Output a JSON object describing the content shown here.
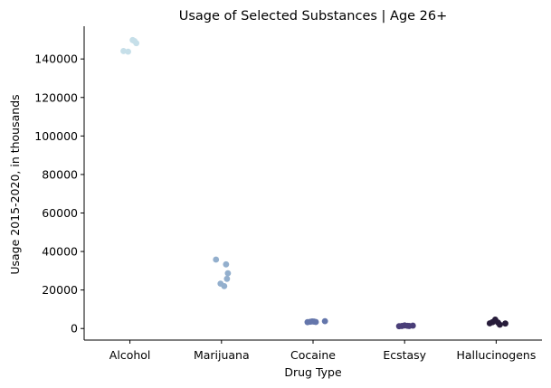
{
  "chart_data": {
    "type": "scatter",
    "title": "Usage of Selected Substances | Age 26+",
    "xlabel": "Drug Type",
    "ylabel": "Usage 2015-2020, in thousands",
    "ylim": [
      -6000,
      157000
    ],
    "yticks": [
      0,
      20000,
      40000,
      60000,
      80000,
      100000,
      120000,
      140000
    ],
    "ytick_labels": [
      "0",
      "20000",
      "40000",
      "60000",
      "80000",
      "100000",
      "120000",
      "140000"
    ],
    "grid": false,
    "categories": [
      "Alcohol",
      "Marijuana",
      "Cocaine",
      "Ecstasy",
      "Hallucinogens"
    ],
    "series": [
      {
        "name": "Alcohol",
        "color": "#c6dfe9",
        "points": [
          {
            "jitter": -0.07,
            "y": 144100
          },
          {
            "jitter": -0.02,
            "y": 143800
          },
          {
            "jitter": 0.03,
            "y": 149800
          },
          {
            "jitter": 0.05,
            "y": 149300
          },
          {
            "jitter": 0.07,
            "y": 148200
          }
        ]
      },
      {
        "name": "Marijuana",
        "color": "#93afcd",
        "points": [
          {
            "jitter": -0.06,
            "y": 35800
          },
          {
            "jitter": -0.01,
            "y": 23300
          },
          {
            "jitter": 0.03,
            "y": 22000
          },
          {
            "jitter": 0.05,
            "y": 33300
          },
          {
            "jitter": 0.06,
            "y": 25800
          },
          {
            "jitter": 0.07,
            "y": 28700
          }
        ]
      },
      {
        "name": "Cocaine",
        "color": "#6476ab",
        "points": [
          {
            "jitter": -0.06,
            "y": 3300
          },
          {
            "jitter": -0.03,
            "y": 3500
          },
          {
            "jitter": -0.01,
            "y": 3700
          },
          {
            "jitter": 0.01,
            "y": 3600
          },
          {
            "jitter": 0.03,
            "y": 3400
          },
          {
            "jitter": 0.13,
            "y": 3800
          }
        ]
      },
      {
        "name": "Ecstasy",
        "color": "#4a3e78",
        "points": [
          {
            "jitter": -0.06,
            "y": 1200
          },
          {
            "jitter": -0.03,
            "y": 1300
          },
          {
            "jitter": 0.0,
            "y": 1600
          },
          {
            "jitter": 0.03,
            "y": 1400
          },
          {
            "jitter": 0.05,
            "y": 1300
          },
          {
            "jitter": 0.09,
            "y": 1500
          }
        ]
      },
      {
        "name": "Hallucinogens",
        "color": "#271c3a",
        "points": [
          {
            "jitter": -0.07,
            "y": 2700
          },
          {
            "jitter": -0.04,
            "y": 3300
          },
          {
            "jitter": -0.01,
            "y": 4600
          },
          {
            "jitter": 0.02,
            "y": 3100
          },
          {
            "jitter": 0.04,
            "y": 2000
          },
          {
            "jitter": 0.1,
            "y": 2600
          }
        ]
      }
    ]
  }
}
